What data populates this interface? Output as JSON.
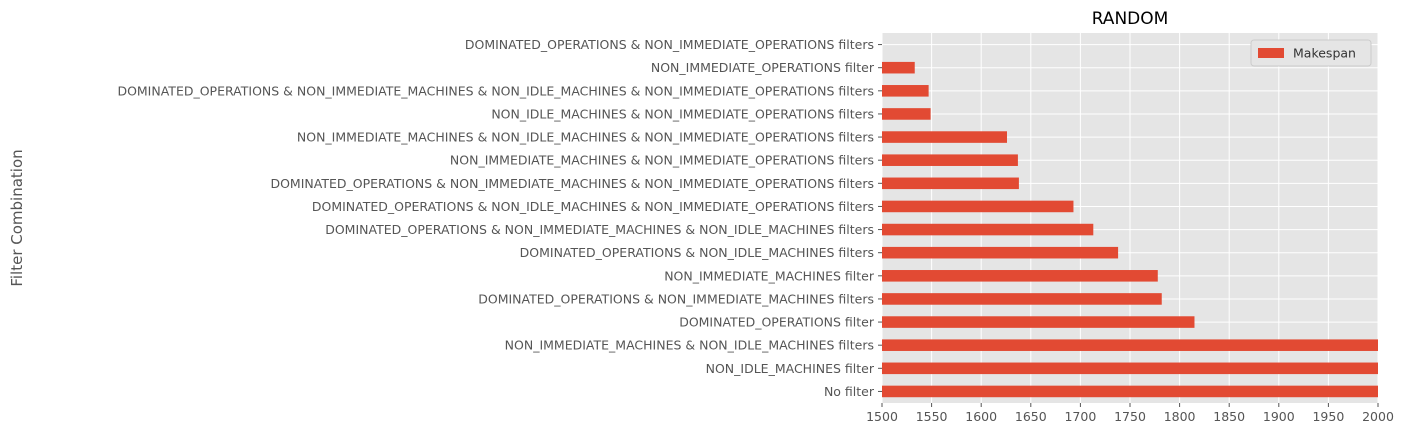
{
  "chart_data": {
    "type": "bar",
    "orientation": "horizontal",
    "title": "RANDOM",
    "xlabel": "",
    "ylabel": "Filter Combination",
    "xlim": [
      1500,
      2000
    ],
    "xticks": [
      1500,
      1550,
      1600,
      1650,
      1700,
      1750,
      1800,
      1850,
      1900,
      1950,
      2000
    ],
    "grid": true,
    "legend_position": "top-right",
    "categories": [
      "DOMINATED_OPERATIONS & NON_IMMEDIATE_OPERATIONS filters",
      "NON_IMMEDIATE_OPERATIONS filter",
      "DOMINATED_OPERATIONS & NON_IMMEDIATE_MACHINES & NON_IDLE_MACHINES & NON_IMMEDIATE_OPERATIONS filters",
      "NON_IDLE_MACHINES & NON_IMMEDIATE_OPERATIONS filters",
      "NON_IMMEDIATE_MACHINES & NON_IDLE_MACHINES & NON_IMMEDIATE_OPERATIONS filters",
      "NON_IMMEDIATE_MACHINES & NON_IMMEDIATE_OPERATIONS filters",
      "DOMINATED_OPERATIONS & NON_IMMEDIATE_MACHINES & NON_IMMEDIATE_OPERATIONS filters",
      "DOMINATED_OPERATIONS & NON_IDLE_MACHINES & NON_IMMEDIATE_OPERATIONS filters",
      "DOMINATED_OPERATIONS & NON_IMMEDIATE_MACHINES & NON_IDLE_MACHINES filters",
      "DOMINATED_OPERATIONS & NON_IDLE_MACHINES filters",
      "NON_IMMEDIATE_MACHINES filter",
      "DOMINATED_OPERATIONS & NON_IMMEDIATE_MACHINES filters",
      "DOMINATED_OPERATIONS filter",
      "NON_IMMEDIATE_MACHINES & NON_IDLE_MACHINES filters",
      "NON_IDLE_MACHINES filter",
      "No filter"
    ],
    "series": [
      {
        "name": "Makespan",
        "color": "#e24a33",
        "values": [
          1500,
          1533,
          1547,
          1549,
          1626,
          1637,
          1638,
          1693,
          1713,
          1738,
          1778,
          1782,
          1815,
          2000,
          2000,
          2000
        ]
      }
    ],
    "colors": {
      "background": "#e5e5e5",
      "grid": "#ffffff",
      "tick_text": "#555555"
    }
  }
}
